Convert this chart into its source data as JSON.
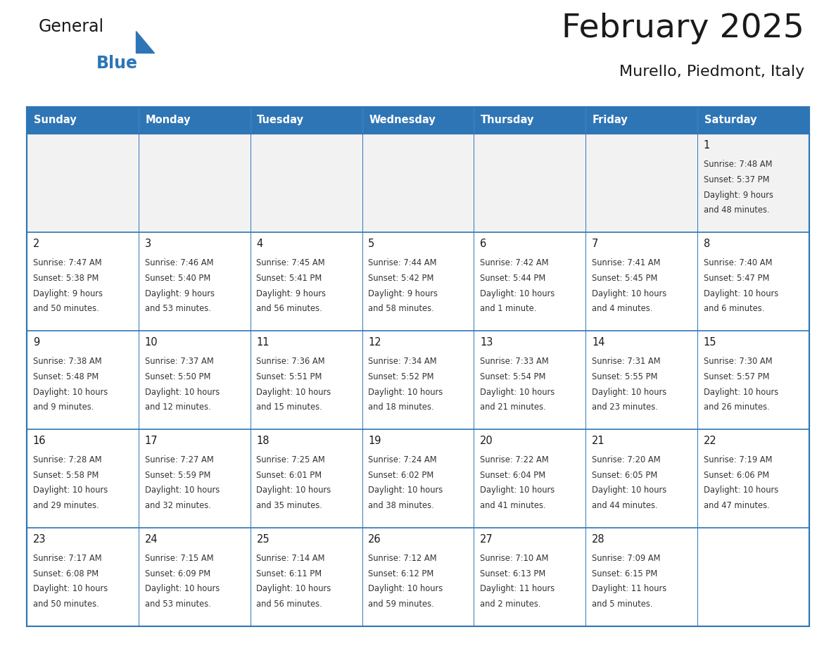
{
  "title": "February 2025",
  "subtitle": "Murello, Piedmont, Italy",
  "header_bg": "#2E75B6",
  "header_text_color": "#FFFFFF",
  "cell_bg_white": "#FFFFFF",
  "cell_bg_gray": "#F2F2F2",
  "cell_line_color": "#2E75B6",
  "text_color": "#1a1a1a",
  "day_headers": [
    "Sunday",
    "Monday",
    "Tuesday",
    "Wednesday",
    "Thursday",
    "Friday",
    "Saturday"
  ],
  "days": [
    {
      "day": 1,
      "col": 6,
      "row": 0,
      "sunrise": "7:48 AM",
      "sunset": "5:37 PM",
      "daylight_h": "9 hours",
      "daylight_m": "and 48 minutes."
    },
    {
      "day": 2,
      "col": 0,
      "row": 1,
      "sunrise": "7:47 AM",
      "sunset": "5:38 PM",
      "daylight_h": "9 hours",
      "daylight_m": "and 50 minutes."
    },
    {
      "day": 3,
      "col": 1,
      "row": 1,
      "sunrise": "7:46 AM",
      "sunset": "5:40 PM",
      "daylight_h": "9 hours",
      "daylight_m": "and 53 minutes."
    },
    {
      "day": 4,
      "col": 2,
      "row": 1,
      "sunrise": "7:45 AM",
      "sunset": "5:41 PM",
      "daylight_h": "9 hours",
      "daylight_m": "and 56 minutes."
    },
    {
      "day": 5,
      "col": 3,
      "row": 1,
      "sunrise": "7:44 AM",
      "sunset": "5:42 PM",
      "daylight_h": "9 hours",
      "daylight_m": "and 58 minutes."
    },
    {
      "day": 6,
      "col": 4,
      "row": 1,
      "sunrise": "7:42 AM",
      "sunset": "5:44 PM",
      "daylight_h": "10 hours",
      "daylight_m": "and 1 minute."
    },
    {
      "day": 7,
      "col": 5,
      "row": 1,
      "sunrise": "7:41 AM",
      "sunset": "5:45 PM",
      "daylight_h": "10 hours",
      "daylight_m": "and 4 minutes."
    },
    {
      "day": 8,
      "col": 6,
      "row": 1,
      "sunrise": "7:40 AM",
      "sunset": "5:47 PM",
      "daylight_h": "10 hours",
      "daylight_m": "and 6 minutes."
    },
    {
      "day": 9,
      "col": 0,
      "row": 2,
      "sunrise": "7:38 AM",
      "sunset": "5:48 PM",
      "daylight_h": "10 hours",
      "daylight_m": "and 9 minutes."
    },
    {
      "day": 10,
      "col": 1,
      "row": 2,
      "sunrise": "7:37 AM",
      "sunset": "5:50 PM",
      "daylight_h": "10 hours",
      "daylight_m": "and 12 minutes."
    },
    {
      "day": 11,
      "col": 2,
      "row": 2,
      "sunrise": "7:36 AM",
      "sunset": "5:51 PM",
      "daylight_h": "10 hours",
      "daylight_m": "and 15 minutes."
    },
    {
      "day": 12,
      "col": 3,
      "row": 2,
      "sunrise": "7:34 AM",
      "sunset": "5:52 PM",
      "daylight_h": "10 hours",
      "daylight_m": "and 18 minutes."
    },
    {
      "day": 13,
      "col": 4,
      "row": 2,
      "sunrise": "7:33 AM",
      "sunset": "5:54 PM",
      "daylight_h": "10 hours",
      "daylight_m": "and 21 minutes."
    },
    {
      "day": 14,
      "col": 5,
      "row": 2,
      "sunrise": "7:31 AM",
      "sunset": "5:55 PM",
      "daylight_h": "10 hours",
      "daylight_m": "and 23 minutes."
    },
    {
      "day": 15,
      "col": 6,
      "row": 2,
      "sunrise": "7:30 AM",
      "sunset": "5:57 PM",
      "daylight_h": "10 hours",
      "daylight_m": "and 26 minutes."
    },
    {
      "day": 16,
      "col": 0,
      "row": 3,
      "sunrise": "7:28 AM",
      "sunset": "5:58 PM",
      "daylight_h": "10 hours",
      "daylight_m": "and 29 minutes."
    },
    {
      "day": 17,
      "col": 1,
      "row": 3,
      "sunrise": "7:27 AM",
      "sunset": "5:59 PM",
      "daylight_h": "10 hours",
      "daylight_m": "and 32 minutes."
    },
    {
      "day": 18,
      "col": 2,
      "row": 3,
      "sunrise": "7:25 AM",
      "sunset": "6:01 PM",
      "daylight_h": "10 hours",
      "daylight_m": "and 35 minutes."
    },
    {
      "day": 19,
      "col": 3,
      "row": 3,
      "sunrise": "7:24 AM",
      "sunset": "6:02 PM",
      "daylight_h": "10 hours",
      "daylight_m": "and 38 minutes."
    },
    {
      "day": 20,
      "col": 4,
      "row": 3,
      "sunrise": "7:22 AM",
      "sunset": "6:04 PM",
      "daylight_h": "10 hours",
      "daylight_m": "and 41 minutes."
    },
    {
      "day": 21,
      "col": 5,
      "row": 3,
      "sunrise": "7:20 AM",
      "sunset": "6:05 PM",
      "daylight_h": "10 hours",
      "daylight_m": "and 44 minutes."
    },
    {
      "day": 22,
      "col": 6,
      "row": 3,
      "sunrise": "7:19 AM",
      "sunset": "6:06 PM",
      "daylight_h": "10 hours",
      "daylight_m": "and 47 minutes."
    },
    {
      "day": 23,
      "col": 0,
      "row": 4,
      "sunrise": "7:17 AM",
      "sunset": "6:08 PM",
      "daylight_h": "10 hours",
      "daylight_m": "and 50 minutes."
    },
    {
      "day": 24,
      "col": 1,
      "row": 4,
      "sunrise": "7:15 AM",
      "sunset": "6:09 PM",
      "daylight_h": "10 hours",
      "daylight_m": "and 53 minutes."
    },
    {
      "day": 25,
      "col": 2,
      "row": 4,
      "sunrise": "7:14 AM",
      "sunset": "6:11 PM",
      "daylight_h": "10 hours",
      "daylight_m": "and 56 minutes."
    },
    {
      "day": 26,
      "col": 3,
      "row": 4,
      "sunrise": "7:12 AM",
      "sunset": "6:12 PM",
      "daylight_h": "10 hours",
      "daylight_m": "and 59 minutes."
    },
    {
      "day": 27,
      "col": 4,
      "row": 4,
      "sunrise": "7:10 AM",
      "sunset": "6:13 PM",
      "daylight_h": "11 hours",
      "daylight_m": "and 2 minutes."
    },
    {
      "day": 28,
      "col": 5,
      "row": 4,
      "sunrise": "7:09 AM",
      "sunset": "6:15 PM",
      "daylight_h": "11 hours",
      "daylight_m": "and 5 minutes."
    }
  ],
  "num_rows": 5,
  "num_cols": 7
}
